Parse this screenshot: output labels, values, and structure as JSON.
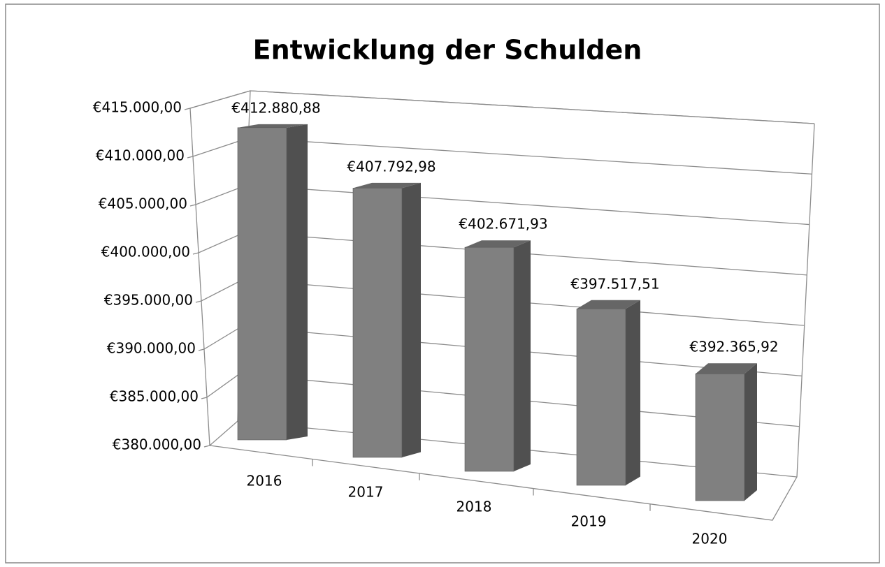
{
  "chart_data": {
    "type": "bar3d",
    "title": "Entwicklung der Schulden",
    "categories": [
      "2016",
      "2017",
      "2018",
      "2019",
      "2020"
    ],
    "values": [
      412880.88,
      407792.98,
      402671.93,
      397517.51,
      392365.92
    ],
    "value_labels": [
      "€412.880,88",
      "€407.792,98",
      "€402.671,93",
      "€397.517,51",
      "€392.365,92"
    ],
    "color": "#808080",
    "ylim": [
      380000,
      415000
    ],
    "yticks": [
      {
        "value": 380000,
        "label": "€380.000,00"
      },
      {
        "value": 385000,
        "label": "€385.000,00"
      },
      {
        "value": 390000,
        "label": "€390.000,00"
      },
      {
        "value": 395000,
        "label": "€395.000,00"
      },
      {
        "value": 400000,
        "label": "€400.000,00"
      },
      {
        "value": 405000,
        "label": "€405.000,00"
      },
      {
        "value": 410000,
        "label": "€410.000,00"
      },
      {
        "value": 415000,
        "label": "€415.000,00"
      }
    ],
    "grid": true
  }
}
